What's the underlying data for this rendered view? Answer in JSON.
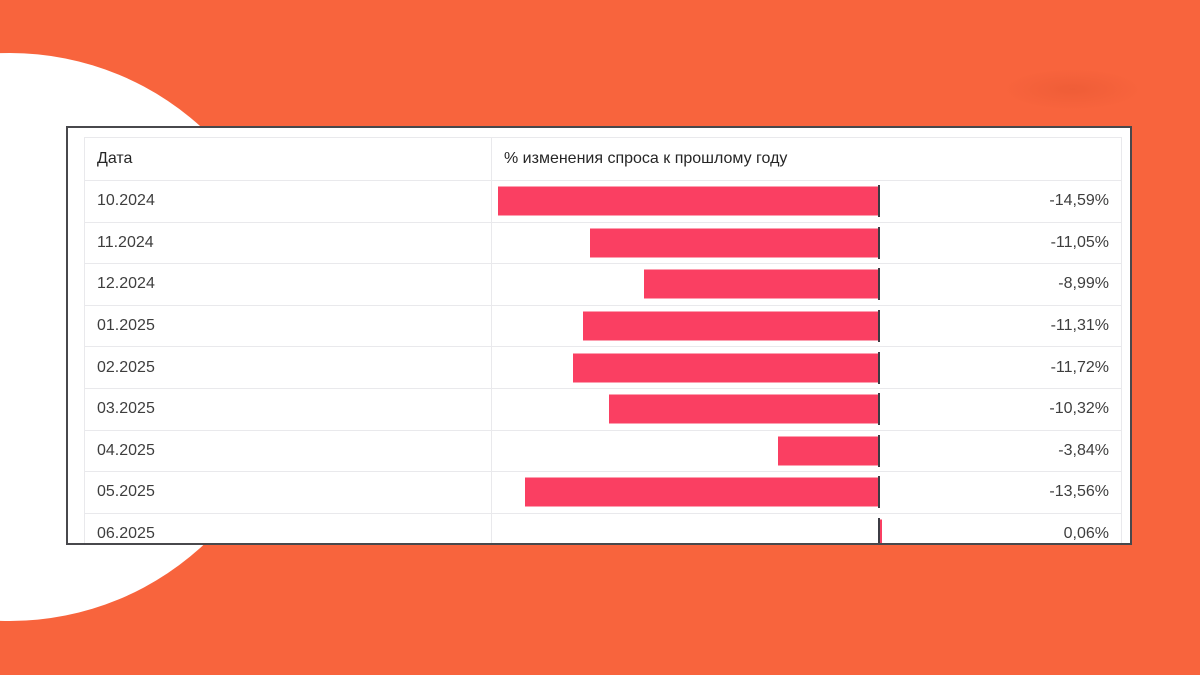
{
  "theme": {
    "background_color": "#f8643d",
    "card_background": "#ffffff",
    "card_border_color": "#48484c",
    "grid_line_color": "#e9e9ec",
    "bar_color": "#fa3f62",
    "baseline_color": "#3c3c44",
    "header_text_color": "#262626",
    "cell_text_color": "#3e3e3e"
  },
  "table": {
    "columns": [
      {
        "label": "Дата"
      },
      {
        "label": "% изменения спроса к прошлому году"
      }
    ],
    "rows": [
      {
        "date": "10.2024",
        "value": -14.59,
        "value_label": "-14,59%"
      },
      {
        "date": "11.2024",
        "value": -11.05,
        "value_label": "-11,05%"
      },
      {
        "date": "12.2024",
        "value": -8.99,
        "value_label": "-8,99%"
      },
      {
        "date": "01.2025",
        "value": -11.31,
        "value_label": "-11,31%"
      },
      {
        "date": "02.2025",
        "value": -11.72,
        "value_label": "-11,72%"
      },
      {
        "date": "03.2025",
        "value": -10.32,
        "value_label": "-10,32%"
      },
      {
        "date": "04.2025",
        "value": -3.84,
        "value_label": "-3,84%"
      },
      {
        "date": "05.2025",
        "value": -13.56,
        "value_label": "-13,56%"
      },
      {
        "date": "06.2025",
        "value": 0.06,
        "value_label": "0,06%"
      }
    ]
  },
  "chart_data": {
    "type": "bar",
    "orientation": "horizontal",
    "title": "% изменения спроса к прошлому году",
    "categories": [
      "10.2024",
      "11.2024",
      "12.2024",
      "01.2025",
      "02.2025",
      "03.2025",
      "04.2025",
      "05.2025",
      "06.2025"
    ],
    "values": [
      -14.59,
      -11.05,
      -8.99,
      -11.31,
      -11.72,
      -10.32,
      -3.84,
      -13.56,
      0.06
    ],
    "value_labels": [
      "-14,59%",
      "-11,05%",
      "-8,99%",
      "-11,31%",
      "-11,72%",
      "-10,32%",
      "-3,84%",
      "-13,56%",
      "0,06%"
    ],
    "xlabel": "Дата",
    "ylabel": "% изменения спроса к прошлому году",
    "xlim": [
      -14.59,
      0.06
    ],
    "baseline": 0,
    "legend": false,
    "grid": false,
    "bar_color": "#fa3f62"
  }
}
